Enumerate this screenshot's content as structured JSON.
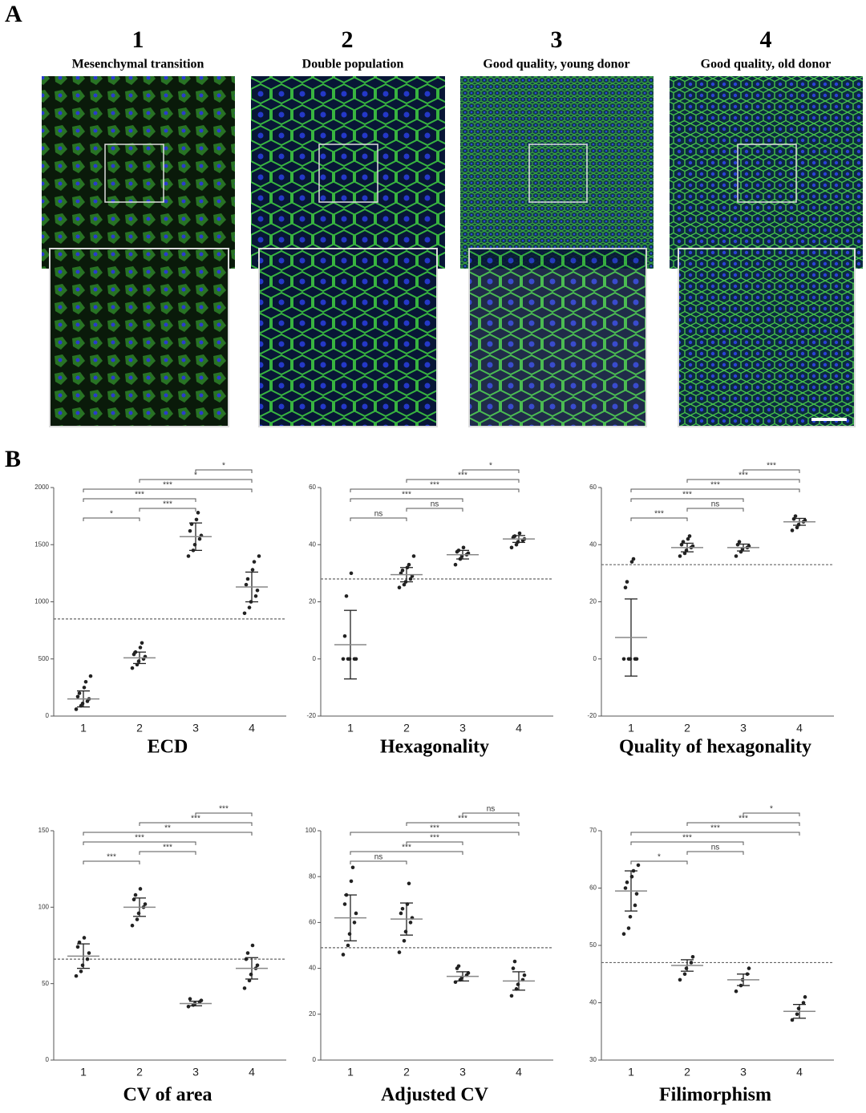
{
  "panel_a": {
    "label": "A",
    "columns": [
      {
        "number": "1",
        "caption": "Mesenchymal transition"
      },
      {
        "number": "2",
        "caption": "Double population"
      },
      {
        "number": "3",
        "caption": "Good quality, young donor"
      },
      {
        "number": "4",
        "caption": "Good quality, old donor"
      }
    ]
  },
  "panel_b": {
    "label": "B"
  },
  "chart_data": [
    {
      "type": "dot",
      "title": "ECD",
      "categories": [
        "1",
        "2",
        "3",
        "4"
      ],
      "ylim": [
        0,
        2000
      ],
      "yticks": [
        0,
        500,
        1000,
        1500,
        2000
      ],
      "reference_line": 850,
      "points": [
        [
          60,
          90,
          110,
          130,
          150,
          170,
          200,
          250,
          300,
          350
        ],
        [
          420,
          450,
          480,
          500,
          520,
          540,
          560,
          600,
          640
        ],
        [
          1400,
          1450,
          1500,
          1550,
          1580,
          1620,
          1680,
          1720,
          1780
        ],
        [
          900,
          950,
          1000,
          1050,
          1100,
          1150,
          1200,
          1280,
          1350,
          1400
        ]
      ],
      "means": [
        150,
        510,
        1570,
        1130
      ],
      "sd": [
        70,
        50,
        120,
        130
      ],
      "comparisons": [
        {
          "pair": [
            "1",
            "2"
          ],
          "label": "*"
        },
        {
          "pair": [
            "2",
            "3"
          ],
          "label": "***"
        },
        {
          "pair": [
            "1",
            "3"
          ],
          "label": "***"
        },
        {
          "pair": [
            "1",
            "4"
          ],
          "label": "***"
        },
        {
          "pair": [
            "2",
            "4"
          ],
          "label": "*"
        },
        {
          "pair": [
            "3",
            "4"
          ],
          "label": "*"
        }
      ]
    },
    {
      "type": "dot",
      "title": "Hexagonality",
      "categories": [
        "1",
        "2",
        "3",
        "4"
      ],
      "ylim": [
        -20,
        60
      ],
      "yticks": [
        -20,
        0,
        20,
        40,
        60
      ],
      "reference_line": 28,
      "points": [
        [
          0,
          0,
          0,
          0,
          0,
          8,
          22,
          30
        ],
        [
          25,
          26,
          27,
          28,
          29,
          30,
          31,
          32,
          33,
          36
        ],
        [
          33,
          35,
          36,
          36.5,
          37,
          37.5,
          38,
          39
        ],
        [
          39,
          40,
          41,
          41.5,
          42,
          42.5,
          43,
          44
        ]
      ],
      "means": [
        5,
        29.5,
        36.5,
        42
      ],
      "sd": [
        12,
        2.5,
        1.5,
        1.2
      ],
      "comparisons": [
        {
          "pair": [
            "1",
            "2"
          ],
          "label": "ns"
        },
        {
          "pair": [
            "2",
            "3"
          ],
          "label": "ns"
        },
        {
          "pair": [
            "1",
            "3"
          ],
          "label": "***"
        },
        {
          "pair": [
            "1",
            "4"
          ],
          "label": "***"
        },
        {
          "pair": [
            "2",
            "4"
          ],
          "label": "***"
        },
        {
          "pair": [
            "3",
            "4"
          ],
          "label": "*"
        }
      ]
    },
    {
      "type": "dot",
      "title": "Quality of hexagonality",
      "categories": [
        "1",
        "2",
        "3",
        "4"
      ],
      "ylim": [
        -20,
        60
      ],
      "yticks": [
        -20,
        0,
        20,
        40,
        60
      ],
      "reference_line": 33,
      "points": [
        [
          0,
          0,
          0,
          0,
          0,
          25,
          27,
          34,
          35
        ],
        [
          36,
          37,
          38,
          39,
          39.5,
          40,
          41,
          42,
          43
        ],
        [
          36,
          37.5,
          38.5,
          39,
          39.5,
          40,
          41
        ],
        [
          45,
          46,
          47,
          48,
          48.5,
          49,
          50
        ]
      ],
      "means": [
        7.5,
        39,
        39,
        48
      ],
      "sd": [
        13.5,
        1.5,
        1.2,
        1.2
      ],
      "comparisons": [
        {
          "pair": [
            "1",
            "2"
          ],
          "label": "***"
        },
        {
          "pair": [
            "2",
            "3"
          ],
          "label": "ns"
        },
        {
          "pair": [
            "1",
            "3"
          ],
          "label": "***"
        },
        {
          "pair": [
            "1",
            "4"
          ],
          "label": "***"
        },
        {
          "pair": [
            "2",
            "4"
          ],
          "label": "***"
        },
        {
          "pair": [
            "3",
            "4"
          ],
          "label": "***"
        }
      ]
    },
    {
      "type": "dot",
      "title": "CV of area",
      "categories": [
        "1",
        "2",
        "3",
        "4"
      ],
      "ylim": [
        0,
        150
      ],
      "yticks": [
        0,
        50,
        100,
        150
      ],
      "reference_line": 66,
      "points": [
        [
          55,
          58,
          62,
          66,
          70,
          74,
          77,
          80
        ],
        [
          88,
          92,
          96,
          100,
          102,
          105,
          108,
          112
        ],
        [
          35,
          36,
          37,
          38,
          39,
          40
        ],
        [
          47,
          52,
          56,
          60,
          62,
          66,
          70,
          75
        ]
      ],
      "means": [
        68,
        100,
        37,
        60
      ],
      "sd": [
        8,
        6,
        1.5,
        7
      ],
      "comparisons": [
        {
          "pair": [
            "1",
            "2"
          ],
          "label": "***"
        },
        {
          "pair": [
            "2",
            "3"
          ],
          "label": "***"
        },
        {
          "pair": [
            "1",
            "3"
          ],
          "label": "***"
        },
        {
          "pair": [
            "1",
            "4"
          ],
          "label": "**"
        },
        {
          "pair": [
            "2",
            "4"
          ],
          "label": "***"
        },
        {
          "pair": [
            "3",
            "4"
          ],
          "label": "***"
        }
      ]
    },
    {
      "type": "dot",
      "title": "Adjusted CV",
      "categories": [
        "1",
        "2",
        "3",
        "4"
      ],
      "ylim": [
        0,
        100
      ],
      "yticks": [
        0,
        20,
        40,
        60,
        80,
        100
      ],
      "reference_line": 49,
      "points": [
        [
          46,
          50,
          55,
          60,
          64,
          68,
          72,
          78,
          84
        ],
        [
          47,
          52,
          56,
          60,
          62,
          64,
          66,
          68,
          77
        ],
        [
          34,
          35,
          36,
          37,
          38,
          40,
          41
        ],
        [
          28,
          31,
          33,
          35,
          37,
          40,
          43
        ]
      ],
      "means": [
        62,
        61.5,
        36.5,
        34.5
      ],
      "sd": [
        10,
        7,
        2,
        4
      ],
      "comparisons": [
        {
          "pair": [
            "1",
            "2"
          ],
          "label": "ns"
        },
        {
          "pair": [
            "1",
            "3"
          ],
          "label": "***"
        },
        {
          "pair": [
            "2",
            "3"
          ],
          "label": "***"
        },
        {
          "pair": [
            "1",
            "4"
          ],
          "label": "***"
        },
        {
          "pair": [
            "2",
            "4"
          ],
          "label": "***"
        },
        {
          "pair": [
            "3",
            "4"
          ],
          "label": "ns"
        }
      ]
    },
    {
      "type": "dot",
      "title": "Filimorphism",
      "categories": [
        "1",
        "2",
        "3",
        "4"
      ],
      "ylim": [
        30,
        70
      ],
      "yticks": [
        30,
        40,
        50,
        60,
        70
      ],
      "reference_line": 47,
      "points": [
        [
          52,
          53,
          55,
          57,
          59,
          60,
          61,
          62,
          63,
          64
        ],
        [
          44,
          45,
          46,
          47,
          48
        ],
        [
          42,
          43,
          44,
          45,
          46
        ],
        [
          37,
          38,
          39,
          40,
          41
        ]
      ],
      "means": [
        59.5,
        46.5,
        44,
        38.5
      ],
      "sd": [
        3.5,
        1,
        1,
        1.2
      ],
      "comparisons": [
        {
          "pair": [
            "1",
            "2"
          ],
          "label": "*"
        },
        {
          "pair": [
            "2",
            "3"
          ],
          "label": "ns"
        },
        {
          "pair": [
            "1",
            "3"
          ],
          "label": "***"
        },
        {
          "pair": [
            "1",
            "4"
          ],
          "label": "***"
        },
        {
          "pair": [
            "2",
            "4"
          ],
          "label": "***"
        },
        {
          "pair": [
            "3",
            "4"
          ],
          "label": "*"
        }
      ]
    }
  ]
}
